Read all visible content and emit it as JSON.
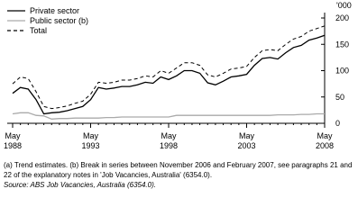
{
  "chart_data": {
    "type": "line",
    "y_unit": "'000",
    "categories": [
      "May 1988",
      null,
      null,
      null,
      null,
      null,
      null,
      null,
      null,
      null,
      "May 1993",
      null,
      null,
      null,
      null,
      null,
      null,
      null,
      null,
      null,
      "May 1998",
      null,
      null,
      null,
      null,
      null,
      null,
      null,
      null,
      null,
      "May 2003",
      null,
      null,
      null,
      null,
      null,
      null,
      null,
      null,
      null,
      "May 2008"
    ],
    "series": [
      {
        "name": "Private sector",
        "color": "#000000",
        "dashed": false,
        "values": [
          57,
          68,
          65,
          45,
          18,
          20,
          21,
          24,
          28,
          32,
          45,
          68,
          65,
          67,
          70,
          70,
          73,
          78,
          76,
          88,
          83,
          90,
          100,
          100,
          95,
          77,
          73,
          80,
          88,
          90,
          93,
          110,
          123,
          125,
          122,
          134,
          144,
          148,
          158,
          162,
          167
        ]
      },
      {
        "name": "Public sector (b)",
        "color": "#aaaaaa",
        "dashed": false,
        "values": [
          18,
          20,
          20,
          15,
          14,
          8,
          9,
          9,
          10,
          10,
          10,
          10,
          11,
          11,
          12,
          12,
          12,
          12,
          12,
          12,
          12,
          15,
          15,
          15,
          15,
          15,
          15,
          15,
          15,
          15,
          15,
          15,
          15,
          15,
          16,
          16,
          16,
          17,
          17,
          18,
          18
        ]
      },
      {
        "name": "Total",
        "color": "#000000",
        "dashed": true,
        "values": [
          75,
          88,
          85,
          60,
          32,
          28,
          30,
          33,
          38,
          42,
          55,
          78,
          76,
          78,
          82,
          82,
          85,
          90,
          88,
          100,
          95,
          105,
          115,
          115,
          110,
          92,
          88,
          95,
          103,
          105,
          108,
          125,
          138,
          140,
          138,
          150,
          160,
          165,
          175,
          180,
          185
        ]
      }
    ],
    "ylim": [
      0,
      200
    ],
    "yticks": [
      0,
      50,
      100,
      150,
      200
    ],
    "grid": false,
    "notes": "(a) Trend estimates. (b) Break in series between November 2006 and February 2007, see paragraphs 21 and 22 of the explanatory notes in 'Job Vacancies, Australia' (6354.0).",
    "source": "Source: ABS Job Vacancies, Australia (6354.0)."
  }
}
